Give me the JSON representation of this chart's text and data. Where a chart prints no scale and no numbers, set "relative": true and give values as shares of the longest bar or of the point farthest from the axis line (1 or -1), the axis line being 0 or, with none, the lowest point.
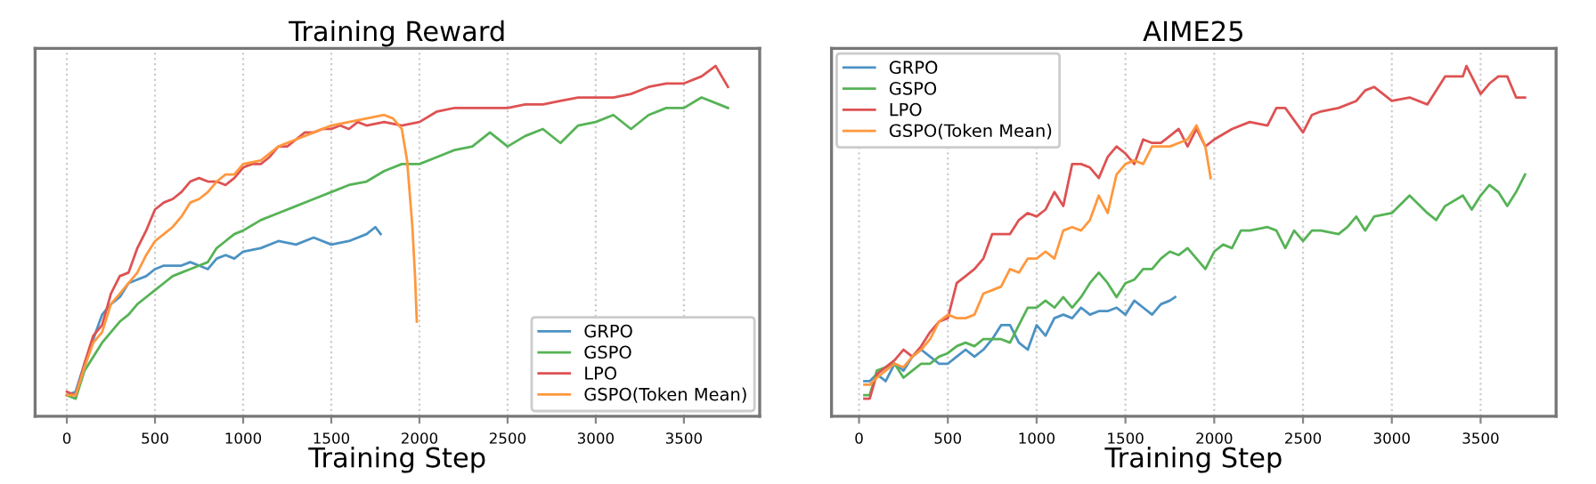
{
  "chart_data": [
    {
      "type": "line",
      "title": "Training Reward",
      "xlabel": "Training Step",
      "relative": true,
      "xlim": [
        -180,
        3930
      ],
      "xticks": [
        0,
        500,
        1000,
        1500,
        2000,
        2500,
        3000,
        3500
      ],
      "grid": "x",
      "legend": "bottom right",
      "tick_labels": "x",
      "series": [
        {
          "name": "GRPO",
          "color": "#4c92c3",
          "x": [
            0,
            50,
            100,
            150,
            200,
            250,
            300,
            350,
            400,
            450,
            500,
            550,
            600,
            650,
            700,
            750,
            800,
            850,
            900,
            950,
            1000,
            1100,
            1200,
            1300,
            1400,
            1500,
            1600,
            1700,
            1750,
            1780
          ],
          "values": [
            0.06,
            0.07,
            0.15,
            0.22,
            0.29,
            0.32,
            0.34,
            0.38,
            0.39,
            0.4,
            0.42,
            0.43,
            0.43,
            0.43,
            0.44,
            0.43,
            0.42,
            0.45,
            0.46,
            0.45,
            0.47,
            0.48,
            0.5,
            0.49,
            0.51,
            0.49,
            0.5,
            0.52,
            0.54,
            0.52
          ]
        },
        {
          "name": "GSPO",
          "color": "#56b356",
          "x": [
            0,
            50,
            100,
            150,
            200,
            250,
            300,
            350,
            400,
            450,
            500,
            550,
            600,
            650,
            700,
            750,
            800,
            850,
            900,
            950,
            1000,
            1100,
            1200,
            1300,
            1400,
            1500,
            1600,
            1700,
            1800,
            1900,
            2000,
            2100,
            2200,
            2300,
            2400,
            2500,
            2600,
            2700,
            2800,
            2900,
            3000,
            3100,
            3200,
            3300,
            3400,
            3500,
            3600,
            3700,
            3750
          ],
          "values": [
            0.06,
            0.05,
            0.13,
            0.17,
            0.21,
            0.24,
            0.27,
            0.29,
            0.32,
            0.34,
            0.36,
            0.38,
            0.4,
            0.41,
            0.42,
            0.43,
            0.44,
            0.48,
            0.5,
            0.52,
            0.53,
            0.56,
            0.58,
            0.6,
            0.62,
            0.64,
            0.66,
            0.67,
            0.7,
            0.72,
            0.72,
            0.74,
            0.76,
            0.77,
            0.81,
            0.77,
            0.8,
            0.82,
            0.78,
            0.83,
            0.84,
            0.86,
            0.82,
            0.86,
            0.88,
            0.88,
            0.91,
            0.89,
            0.88
          ]
        },
        {
          "name": "LPO",
          "color": "#de5253",
          "x": [
            0,
            50,
            100,
            150,
            200,
            250,
            300,
            350,
            400,
            450,
            500,
            550,
            600,
            650,
            700,
            750,
            800,
            850,
            900,
            950,
            1000,
            1050,
            1100,
            1150,
            1200,
            1250,
            1300,
            1350,
            1400,
            1450,
            1500,
            1550,
            1600,
            1650,
            1700,
            1800,
            1900,
            2000,
            2100,
            2200,
            2300,
            2400,
            2500,
            2600,
            2700,
            2800,
            2900,
            3000,
            3100,
            3200,
            3300,
            3400,
            3500,
            3600,
            3680,
            3750
          ],
          "values": [
            0.07,
            0.06,
            0.15,
            0.23,
            0.26,
            0.35,
            0.4,
            0.41,
            0.48,
            0.53,
            0.59,
            0.61,
            0.62,
            0.64,
            0.67,
            0.68,
            0.67,
            0.67,
            0.66,
            0.68,
            0.71,
            0.72,
            0.72,
            0.74,
            0.77,
            0.77,
            0.79,
            0.81,
            0.81,
            0.82,
            0.82,
            0.83,
            0.82,
            0.84,
            0.83,
            0.84,
            0.83,
            0.84,
            0.87,
            0.88,
            0.88,
            0.88,
            0.88,
            0.89,
            0.89,
            0.9,
            0.91,
            0.91,
            0.91,
            0.92,
            0.94,
            0.95,
            0.95,
            0.97,
            1.0,
            0.94
          ]
        },
        {
          "name": "GSPO(Token Mean)",
          "color": "#ff983e",
          "x": [
            0,
            50,
            100,
            150,
            200,
            250,
            300,
            350,
            400,
            450,
            500,
            550,
            600,
            650,
            700,
            750,
            800,
            850,
            900,
            950,
            1000,
            1100,
            1200,
            1300,
            1400,
            1500,
            1600,
            1700,
            1800,
            1850,
            1900,
            1930,
            1960,
            1975,
            1985
          ],
          "values": [
            0.06,
            0.06,
            0.14,
            0.21,
            0.24,
            0.32,
            0.35,
            0.38,
            0.41,
            0.46,
            0.5,
            0.52,
            0.54,
            0.57,
            0.61,
            0.62,
            0.64,
            0.67,
            0.69,
            0.69,
            0.72,
            0.73,
            0.77,
            0.79,
            0.81,
            0.83,
            0.84,
            0.85,
            0.86,
            0.85,
            0.82,
            0.73,
            0.54,
            0.4,
            0.27
          ]
        }
      ]
    },
    {
      "type": "line",
      "title": "AIME25",
      "xlabel": "Training Step",
      "relative": true,
      "xlim": [
        -155,
        3925
      ],
      "xticks": [
        0,
        500,
        1000,
        1500,
        2000,
        2500,
        3000,
        3500
      ],
      "grid": "x",
      "legend": "top left",
      "tick_labels": "x",
      "series": [
        {
          "name": "GRPO",
          "color": "#4c92c3",
          "x": [
            30,
            60,
            100,
            150,
            200,
            250,
            300,
            350,
            400,
            450,
            500,
            550,
            600,
            650,
            700,
            750,
            800,
            850,
            900,
            950,
            1000,
            1050,
            1100,
            1150,
            1200,
            1250,
            1300,
            1350,
            1400,
            1450,
            1500,
            1550,
            1600,
            1650,
            1700,
            1750,
            1780
          ],
          "values": [
            0.1,
            0.1,
            0.12,
            0.1,
            0.15,
            0.13,
            0.17,
            0.19,
            0.17,
            0.15,
            0.15,
            0.17,
            0.19,
            0.17,
            0.19,
            0.22,
            0.26,
            0.26,
            0.21,
            0.19,
            0.26,
            0.23,
            0.28,
            0.29,
            0.28,
            0.31,
            0.29,
            0.3,
            0.3,
            0.31,
            0.29,
            0.33,
            0.31,
            0.29,
            0.32,
            0.33,
            0.34
          ]
        },
        {
          "name": "GSPO",
          "color": "#56b356",
          "x": [
            30,
            60,
            100,
            150,
            200,
            250,
            300,
            350,
            400,
            450,
            500,
            550,
            600,
            650,
            700,
            750,
            800,
            850,
            900,
            950,
            1000,
            1050,
            1100,
            1150,
            1200,
            1250,
            1300,
            1350,
            1400,
            1450,
            1500,
            1550,
            1600,
            1650,
            1700,
            1750,
            1800,
            1850,
            1900,
            1950,
            2000,
            2050,
            2100,
            2150,
            2200,
            2300,
            2350,
            2400,
            2450,
            2500,
            2550,
            2600,
            2700,
            2750,
            2800,
            2850,
            2900,
            3000,
            3100,
            3200,
            3250,
            3300,
            3400,
            3450,
            3500,
            3550,
            3600,
            3650,
            3700,
            3750
          ],
          "values": [
            0.06,
            0.06,
            0.13,
            0.14,
            0.15,
            0.11,
            0.13,
            0.15,
            0.15,
            0.17,
            0.18,
            0.2,
            0.21,
            0.2,
            0.22,
            0.22,
            0.22,
            0.21,
            0.26,
            0.31,
            0.31,
            0.33,
            0.31,
            0.34,
            0.31,
            0.34,
            0.38,
            0.41,
            0.38,
            0.34,
            0.38,
            0.39,
            0.42,
            0.42,
            0.45,
            0.47,
            0.46,
            0.48,
            0.45,
            0.42,
            0.47,
            0.49,
            0.48,
            0.53,
            0.53,
            0.54,
            0.53,
            0.48,
            0.53,
            0.5,
            0.53,
            0.53,
            0.52,
            0.54,
            0.57,
            0.53,
            0.57,
            0.58,
            0.63,
            0.58,
            0.56,
            0.6,
            0.63,
            0.59,
            0.63,
            0.66,
            0.64,
            0.6,
            0.64,
            0.69
          ]
        },
        {
          "name": "LPO",
          "color": "#de5253",
          "x": [
            30,
            60,
            100,
            200,
            250,
            300,
            350,
            400,
            450,
            500,
            550,
            600,
            650,
            700,
            750,
            800,
            850,
            900,
            950,
            1000,
            1050,
            1100,
            1150,
            1200,
            1250,
            1300,
            1350,
            1400,
            1450,
            1500,
            1550,
            1600,
            1650,
            1700,
            1750,
            1800,
            1850,
            1900,
            1950,
            2000,
            2100,
            2200,
            2300,
            2350,
            2400,
            2500,
            2550,
            2600,
            2700,
            2800,
            2850,
            2900,
            3000,
            3100,
            3200,
            3300,
            3400,
            3420,
            3500,
            3550,
            3600,
            3650,
            3700,
            3750
          ],
          "values": [
            0.05,
            0.05,
            0.12,
            0.16,
            0.19,
            0.17,
            0.2,
            0.24,
            0.27,
            0.28,
            0.38,
            0.4,
            0.42,
            0.45,
            0.52,
            0.52,
            0.52,
            0.56,
            0.58,
            0.57,
            0.59,
            0.64,
            0.6,
            0.72,
            0.72,
            0.71,
            0.68,
            0.74,
            0.77,
            0.75,
            0.72,
            0.79,
            0.78,
            0.78,
            0.8,
            0.82,
            0.77,
            0.82,
            0.77,
            0.79,
            0.82,
            0.84,
            0.83,
            0.88,
            0.88,
            0.81,
            0.86,
            0.87,
            0.88,
            0.9,
            0.93,
            0.94,
            0.9,
            0.91,
            0.89,
            0.97,
            0.97,
            1.0,
            0.92,
            0.95,
            0.97,
            0.97,
            0.91,
            0.91
          ]
        },
        {
          "name": "GSPO(Token Mean)",
          "color": "#ff983e",
          "x": [
            30,
            60,
            100,
            150,
            200,
            250,
            300,
            350,
            400,
            450,
            500,
            550,
            600,
            650,
            700,
            750,
            800,
            850,
            900,
            950,
            1000,
            1050,
            1100,
            1150,
            1200,
            1250,
            1300,
            1350,
            1400,
            1450,
            1500,
            1550,
            1600,
            1650,
            1700,
            1750,
            1800,
            1850,
            1900,
            1950,
            1980
          ],
          "values": [
            0.09,
            0.09,
            0.11,
            0.13,
            0.15,
            0.14,
            0.17,
            0.19,
            0.22,
            0.27,
            0.29,
            0.28,
            0.28,
            0.29,
            0.35,
            0.36,
            0.37,
            0.42,
            0.41,
            0.45,
            0.45,
            0.47,
            0.45,
            0.53,
            0.54,
            0.53,
            0.56,
            0.63,
            0.58,
            0.69,
            0.72,
            0.73,
            0.72,
            0.77,
            0.77,
            0.77,
            0.78,
            0.79,
            0.83,
            0.77,
            0.68
          ]
        }
      ]
    }
  ]
}
